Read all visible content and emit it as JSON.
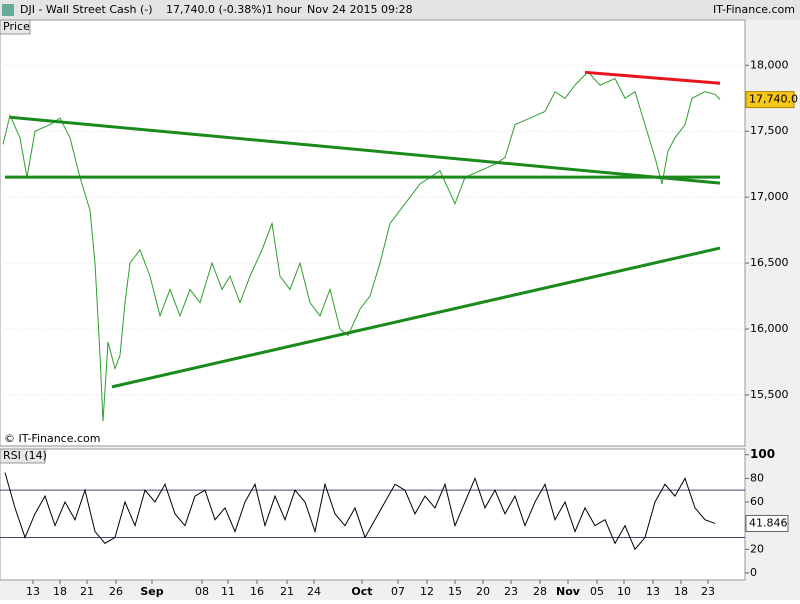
{
  "header": {
    "symbol": "DJI - Wall Street Cash (-)",
    "quote": "17,740.0 (-0.38%)",
    "interval": "1 hour",
    "timestamp": "Nov 24 2015 09:28",
    "brand": "IT-Finance.com",
    "watermark": "© IT-Finance.com"
  },
  "chart_data": [
    {
      "type": "line",
      "title": "Price",
      "color": "#2e9e2e",
      "grid": true,
      "x": [
        3,
        10,
        20,
        27,
        35,
        50,
        60,
        70,
        80,
        90,
        95,
        100,
        103,
        108,
        115,
        120,
        125,
        130,
        140,
        150,
        160,
        170,
        180,
        190,
        200,
        212,
        222,
        230,
        240,
        250,
        262,
        272,
        280,
        290,
        300,
        310,
        320,
        330,
        340,
        348,
        360,
        370,
        380,
        390,
        400,
        410,
        420,
        430,
        440,
        455,
        465,
        480,
        495,
        505,
        515,
        530,
        545,
        555,
        565,
        575,
        588,
        600,
        615,
        625,
        635,
        645,
        655,
        662,
        668,
        675,
        685,
        692,
        705,
        715,
        720
      ],
      "values": [
        17400,
        17620,
        17450,
        17150,
        17500,
        17550,
        17600,
        17450,
        17150,
        16900,
        16500,
        15800,
        15300,
        15900,
        15700,
        15800,
        16200,
        16500,
        16600,
        16400,
        16100,
        16300,
        16100,
        16300,
        16200,
        16500,
        16300,
        16400,
        16200,
        16400,
        16600,
        16800,
        16400,
        16300,
        16500,
        16200,
        16100,
        16300,
        16000,
        15950,
        16150,
        16250,
        16500,
        16800,
        16900,
        17000,
        17100,
        17150,
        17200,
        16950,
        17150,
        17200,
        17250,
        17300,
        17550,
        17600,
        17650,
        17800,
        17750,
        17850,
        17950,
        17850,
        17900,
        17750,
        17800,
        17550,
        17300,
        17100,
        17350,
        17450,
        17550,
        17750,
        17800,
        17780,
        17740
      ],
      "last_price": {
        "value": 17740,
        "label": "17,740.0"
      },
      "trendlines": [
        {
          "color": "#1a8a1a",
          "x": [
            10,
            720
          ],
          "values": [
            17606,
            17106
          ]
        },
        {
          "color": "#1a8a1a",
          "x": [
            5,
            720
          ],
          "values": [
            17152,
            17152
          ]
        },
        {
          "color": "#1a8a1a",
          "x": [
            112,
            720
          ],
          "values": [
            15561,
            16614
          ]
        },
        {
          "color": "#e8141e",
          "x": [
            585,
            720
          ],
          "values": [
            17947,
            17864
          ]
        }
      ],
      "xlim": [
        0,
        745
      ],
      "ylim": [
        15120,
        18230
      ],
      "yticks": [
        {
          "value": 15500,
          "label": "15,500"
        },
        {
          "value": 16000,
          "label": "16,000"
        },
        {
          "value": 16500,
          "label": "16,500"
        },
        {
          "value": 17000,
          "label": "17,000"
        },
        {
          "value": 17500,
          "label": "17,500"
        },
        {
          "value": 18000,
          "label": "18,000"
        }
      ]
    },
    {
      "type": "line",
      "title": "RSI (14)",
      "color": "#000000",
      "grid": false,
      "x": [
        5,
        15,
        25,
        35,
        45,
        55,
        65,
        75,
        85,
        95,
        105,
        115,
        125,
        135,
        145,
        155,
        165,
        175,
        185,
        195,
        205,
        215,
        225,
        235,
        245,
        255,
        265,
        275,
        285,
        295,
        305,
        315,
        325,
        335,
        345,
        355,
        365,
        375,
        385,
        395,
        405,
        415,
        425,
        435,
        445,
        455,
        465,
        475,
        485,
        495,
        505,
        515,
        525,
        535,
        545,
        555,
        565,
        575,
        585,
        595,
        605,
        615,
        625,
        635,
        645,
        655,
        665,
        675,
        685,
        695,
        705,
        715
      ],
      "values": [
        85,
        55,
        30,
        50,
        65,
        40,
        60,
        45,
        70,
        35,
        25,
        30,
        60,
        40,
        70,
        60,
        75,
        50,
        40,
        65,
        70,
        45,
        55,
        35,
        60,
        75,
        40,
        65,
        45,
        70,
        60,
        35,
        75,
        50,
        40,
        55,
        30,
        45,
        60,
        75,
        70,
        50,
        65,
        55,
        75,
        40,
        60,
        80,
        55,
        70,
        50,
        65,
        40,
        60,
        75,
        45,
        60,
        35,
        55,
        40,
        45,
        25,
        40,
        20,
        30,
        60,
        75,
        65,
        80,
        55,
        45,
        41.846
      ],
      "levels": [
        30,
        70
      ],
      "xlim": [
        0,
        745
      ],
      "ylim": [
        -6,
        104
      ],
      "yticks": [
        0,
        20,
        40,
        60,
        80,
        100
      ],
      "xticks": [
        {
          "value": 33,
          "label": "13"
        },
        {
          "value": 60,
          "label": "18"
        },
        {
          "value": 87,
          "label": "21"
        },
        {
          "value": 116,
          "label": "26"
        },
        {
          "value": 152,
          "label": "Sep"
        },
        {
          "value": 202,
          "label": "08"
        },
        {
          "value": 228,
          "label": "11"
        },
        {
          "value": 257,
          "label": "16"
        },
        {
          "value": 287,
          "label": "21"
        },
        {
          "value": 314,
          "label": "24"
        },
        {
          "value": 362,
          "label": "Oct"
        },
        {
          "value": 398,
          "label": "07"
        },
        {
          "value": 427,
          "label": "12"
        },
        {
          "value": 455,
          "label": "15"
        },
        {
          "value": 483,
          "label": "20"
        },
        {
          "value": 511,
          "label": "23"
        },
        {
          "value": 540,
          "label": "28"
        },
        {
          "value": 568,
          "label": "Nov"
        },
        {
          "value": 597,
          "label": "05"
        },
        {
          "value": 624,
          "label": "10"
        },
        {
          "value": 653,
          "label": "13"
        },
        {
          "value": 681,
          "label": "18"
        },
        {
          "value": 708,
          "label": "23"
        }
      ]
    }
  ]
}
